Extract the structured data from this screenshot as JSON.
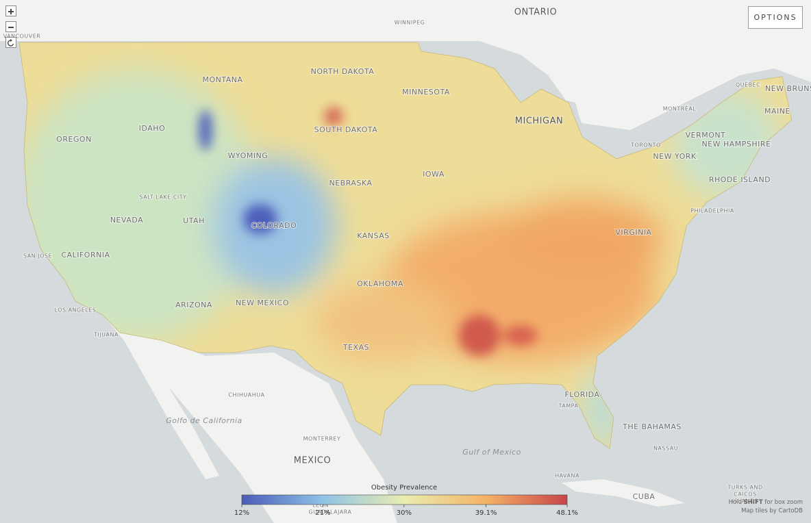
{
  "map": {
    "labels": [
      "ONTARIO",
      "WINNIPEG",
      "NORTH DAKOTA",
      "MONTANA",
      "MINNESOTA",
      "SOUTH DAKOTA",
      "MICHIGAN",
      "IDAHO",
      "OREGON",
      "WYOMING",
      "NEBRASKA",
      "IOWA",
      "SALT LAKE CITY",
      "NEVADA",
      "UTAH",
      "COLORADO",
      "KANSAS",
      "SAN JOSE",
      "CALIFORNIA",
      "OKLAHOMA",
      "ARIZONA",
      "NEW MEXICO",
      "LOS ANGELES",
      "TEXAS",
      "TIJUANA",
      "CHIHUAHUA",
      "FLORIDA",
      "TAMPA",
      "THE BAHAMAS",
      "NASSAU",
      "Golfo de California",
      "MONTERREY",
      "Gulf of Mexico",
      "MEXICO",
      "HAVANA",
      "CUBA",
      "TORONTO",
      "MONTRÉAL",
      "QUÉBEC",
      "NEW BRUNSWICK",
      "MAINE",
      "VERMONT",
      "NEW HAMPSHIRE",
      "NEW YORK",
      "RHODE ISLAND",
      "PHILADELPHIA",
      "VIRGINIA",
      "TURKS AND",
      "CAICOS",
      "ISLANDS",
      "VANCOUVER",
      "LEON",
      "GUADALAJARA"
    ]
  },
  "controls": {
    "options": "OPTIONS"
  },
  "legend": {
    "title": "Obesity Prevalence",
    "lim": [
      12,
      48.1
    ],
    "ticks": [
      {
        "value": 12,
        "label": "12%"
      },
      {
        "value": 21,
        "label": "21%"
      },
      {
        "value": 30,
        "label": "30%"
      },
      {
        "value": 39.1,
        "label": "39.1%"
      },
      {
        "value": 48.1,
        "label": "48.1%"
      }
    ],
    "colors": [
      "#4a5bb8",
      "#8fc3e6",
      "#e9edb0",
      "#f4b366",
      "#c8444b"
    ]
  },
  "attribution": {
    "hint_prefix": "Hold",
    "hint_key": "SHIFT",
    "hint_suffix": "for box zoom",
    "tiles": "Map tiles by CartoDB"
  }
}
